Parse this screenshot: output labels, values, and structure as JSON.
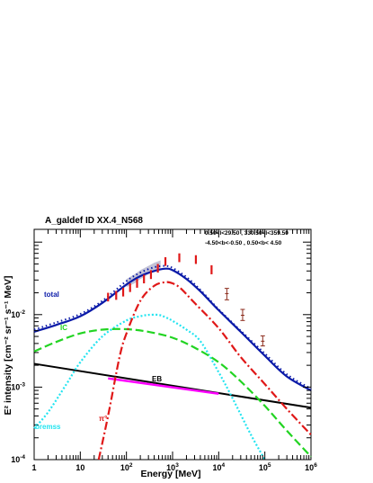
{
  "chart_data": {
    "type": "line",
    "title": "A_galdef ID XX.4_N568",
    "region_line1": "0.50<l<29.50 , 330.50<l<359.50",
    "region_line2": "-4.50<b<-0.50 , 0.50<b< 4.50",
    "xlabel": "Energy [MeV]",
    "ylabel": "E² intensity [cm⁻² sr⁻¹ s⁻¹ MeV]",
    "x_scale": "log",
    "y_scale": "log",
    "xlim": [
      1,
      1000000
    ],
    "ylim": [
      0.0001,
      0.15
    ],
    "x_ticks": [
      {
        "v": 1,
        "base": "1",
        "exp": ""
      },
      {
        "v": 10,
        "base": "10",
        "exp": ""
      },
      {
        "v": 100,
        "base": "10",
        "exp": "2"
      },
      {
        "v": 1000,
        "base": "10",
        "exp": "3"
      },
      {
        "v": 10000,
        "base": "10",
        "exp": "4"
      },
      {
        "v": 100000,
        "base": "10",
        "exp": "5"
      },
      {
        "v": 1000000,
        "base": "10",
        "exp": "6"
      }
    ],
    "y_ticks": [
      {
        "v": 0.0001,
        "base": "10",
        "exp": "-4"
      },
      {
        "v": 0.001,
        "base": "10",
        "exp": "-3"
      },
      {
        "v": 0.01,
        "base": "10",
        "exp": "-2"
      }
    ],
    "colors": {
      "total": "#0a1aa8",
      "ic": "#22d422",
      "pi0": "#e01818",
      "bremss": "#22e4f0",
      "eb": "#000000",
      "eb_segment": "#ff00ff",
      "data_red": "#e01818",
      "data_brown": "#8b2a1a",
      "band": "#b8b8d0"
    },
    "label_texts": {
      "total": "total",
      "ic": "IC",
      "eb": "EB",
      "bremss": "bremss",
      "pi0": "π°"
    },
    "series": [
      {
        "id": "total",
        "x": [
          1,
          3,
          10,
          30,
          100,
          200,
          400,
          700,
          1000,
          2000,
          4000,
          10000,
          30000,
          100000,
          300000,
          1000000
        ],
        "y": [
          0.0058,
          0.0072,
          0.0095,
          0.0145,
          0.026,
          0.034,
          0.04,
          0.043,
          0.041,
          0.031,
          0.021,
          0.0115,
          0.0058,
          0.0027,
          0.0014,
          0.0009
        ]
      },
      {
        "id": "total_model_dotted",
        "x": [
          1,
          3,
          10,
          30,
          100,
          200,
          400,
          700,
          1000,
          2000,
          4000,
          10000,
          30000,
          100000,
          300000,
          1000000
        ],
        "y": [
          0.0062,
          0.0078,
          0.0102,
          0.0155,
          0.029,
          0.038,
          0.045,
          0.047,
          0.044,
          0.033,
          0.022,
          0.0118,
          0.006,
          0.0029,
          0.0015,
          0.00095
        ]
      },
      {
        "id": "ic",
        "x": [
          1,
          3,
          10,
          30,
          100,
          300,
          1000,
          3000,
          10000,
          30000,
          100000,
          300000,
          1000000
        ],
        "y": [
          0.0031,
          0.0042,
          0.0055,
          0.0062,
          0.0063,
          0.0058,
          0.0048,
          0.0035,
          0.0022,
          0.0012,
          0.00055,
          0.00025,
          0.00011
        ]
      },
      {
        "id": "pi0",
        "x": [
          25,
          40,
          70,
          100,
          200,
          400,
          700,
          1000,
          1500,
          3000,
          10000,
          30000,
          100000,
          300000,
          1000000
        ],
        "y": [
          0.0001,
          0.0004,
          0.0025,
          0.0055,
          0.0155,
          0.025,
          0.028,
          0.027,
          0.023,
          0.0145,
          0.0065,
          0.0026,
          0.0011,
          0.0005,
          0.00022
        ]
      },
      {
        "id": "bremss",
        "x": [
          1,
          2,
          5,
          10,
          30,
          100,
          200,
          300,
          500,
          700,
          1000,
          2000,
          4000,
          10000,
          20000,
          50000,
          100000
        ],
        "y": [
          0.00027,
          0.00045,
          0.0011,
          0.0022,
          0.005,
          0.0083,
          0.0095,
          0.0099,
          0.0099,
          0.0092,
          0.0082,
          0.0062,
          0.0043,
          0.0016,
          0.0007,
          0.00022,
          0.0001
        ]
      },
      {
        "id": "eb",
        "x": [
          1,
          1000000
        ],
        "y": [
          0.0021,
          0.00052
        ]
      },
      {
        "id": "eb_segment",
        "x": [
          40,
          10000
        ],
        "y": [
          0.00132,
          0.00081
        ]
      },
      {
        "id": "data_red",
        "x": [
          40,
          60,
          85,
          120,
          170,
          240,
          340,
          480,
          700,
          1400,
          3200,
          7000
        ],
        "y": [
          0.0175,
          0.0185,
          0.0205,
          0.0235,
          0.027,
          0.031,
          0.036,
          0.044,
          0.054,
          0.061,
          0.058,
          0.042
        ],
        "yerr_lo": [
          0.0152,
          0.016,
          0.0178,
          0.0205,
          0.0235,
          0.027,
          0.031,
          0.038,
          0.047,
          0.053,
          0.05,
          0.036
        ],
        "yerr_hi": [
          0.02,
          0.0212,
          0.0235,
          0.027,
          0.031,
          0.0355,
          0.041,
          0.05,
          0.062,
          0.07,
          0.066,
          0.048
        ]
      },
      {
        "id": "data_brown",
        "x": [
          15000,
          33000,
          90000
        ],
        "y": [
          0.0195,
          0.0098,
          0.0043
        ],
        "yerr_lo": [
          0.016,
          0.0083,
          0.0037
        ],
        "yerr_hi": [
          0.023,
          0.0118,
          0.0051
        ]
      },
      {
        "id": "band",
        "x": [
          100,
          150,
          200,
          300,
          400,
          550
        ],
        "y_lo": [
          0.024,
          0.027,
          0.031,
          0.036,
          0.04,
          0.044
        ],
        "y_hi": [
          0.031,
          0.036,
          0.041,
          0.047,
          0.052,
          0.056
        ]
      }
    ]
  }
}
